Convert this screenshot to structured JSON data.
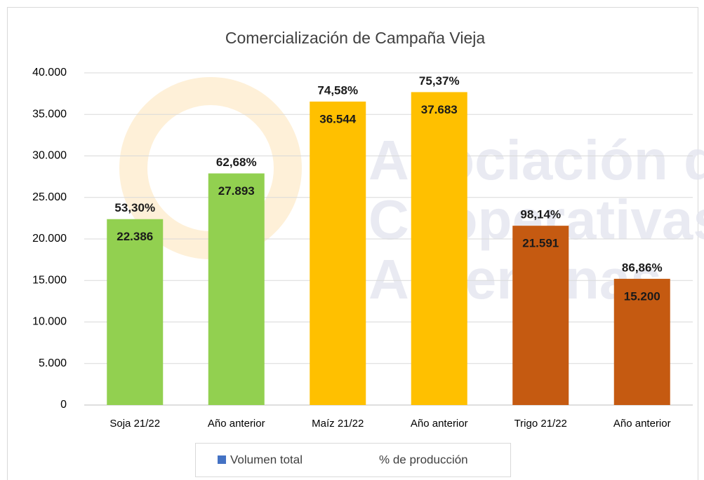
{
  "chart_data": {
    "type": "bar",
    "title": "Comercialización de Campaña Vieja",
    "categories": [
      "Soja 21/22",
      "Año anterior",
      "Maíz 21/22",
      "Año anterior",
      "Trigo 21/22",
      "Año anterior"
    ],
    "series": [
      {
        "name": "Volumen total",
        "color": "#4472c4",
        "colors": [
          "#92d050",
          "#92d050",
          "#ffc000",
          "#ffc000",
          "#c55a11",
          "#c55a11"
        ],
        "values": [
          22386,
          27893,
          36544,
          37683,
          21591,
          15200
        ],
        "value_labels": [
          "22.386",
          "27.893",
          "36.544",
          "37.683",
          "21.591",
          "15.200"
        ]
      },
      {
        "name": "% de producción",
        "values": [
          53.3,
          62.68,
          74.58,
          75.37,
          98.14,
          86.86
        ],
        "value_labels": [
          "53,30%",
          "62,68%",
          "74,58%",
          "75,37%",
          "98,14%",
          "86,86%"
        ]
      }
    ],
    "ylim": [
      0,
      40000
    ],
    "yticks": [
      0,
      {
        "value": 5000,
        "label": "5.000"
      },
      {
        "value": 10000,
        "label": "10.000"
      },
      {
        "value": 15000,
        "label": "15.000"
      },
      {
        "value": 20000,
        "label": "20.000"
      },
      {
        "value": 25000,
        "label": "25.000"
      },
      {
        "value": 30000,
        "label": "30.000"
      },
      {
        "value": 35000,
        "label": "35.000"
      },
      {
        "value": 40000,
        "label": "40.000"
      }
    ],
    "grid": true,
    "legend": "bottom",
    "watermark": [
      "Asociación de",
      "Cooperativas",
      "Argentinas"
    ]
  }
}
